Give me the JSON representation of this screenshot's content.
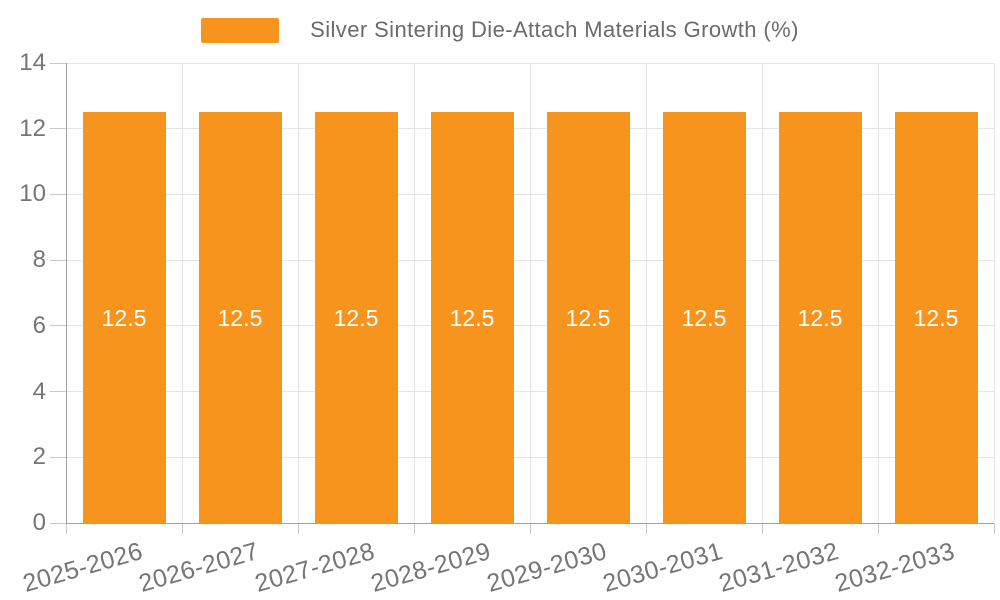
{
  "chart_data": {
    "type": "bar",
    "title": "Silver Sintering Die-Attach Materials Growth (%)",
    "categories": [
      "2025-2026",
      "2026-2027",
      "2027-2028",
      "2028-2029",
      "2029-2030",
      "2030-2031",
      "2031-2032",
      "2032-2033"
    ],
    "values": [
      12.5,
      12.5,
      12.5,
      12.5,
      12.5,
      12.5,
      12.5,
      12.5
    ],
    "bar_labels": [
      "12.5",
      "12.5",
      "12.5",
      "12.5",
      "12.5",
      "12.5",
      "12.5",
      "12.5"
    ],
    "xlabel": "",
    "ylabel": "",
    "ylim": [
      0,
      14
    ],
    "ytick_step": 2,
    "ytick_labels": [
      "0",
      "2",
      "4",
      "6",
      "8",
      "10",
      "12",
      "14"
    ],
    "grid": true,
    "legend_position": "top-center",
    "xtick_rotation_deg": -16,
    "colors": {
      "bar": "#F7941E",
      "bar_label": "#FFFFFF",
      "gridline": "#E4E4E4",
      "axis_line": "#A0A0A0",
      "tick_line": "#C8C8C8",
      "tick_label": "#757575",
      "legend_text": "#6B6B6B",
      "background": "#FFFFFF"
    }
  }
}
